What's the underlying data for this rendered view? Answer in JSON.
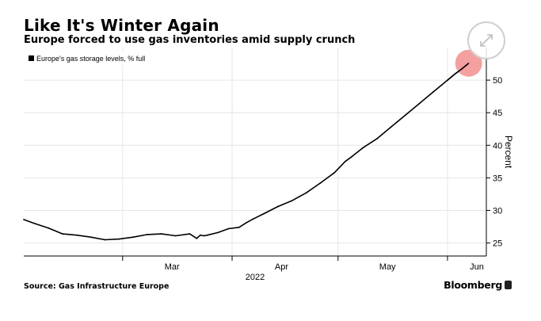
{
  "header": {
    "title": "Like It's Winter Again",
    "subtitle": "Europe forced to use gas inventories amid supply crunch"
  },
  "footer": {
    "source": "Source: Gas Infrastructure Europe",
    "brand": "Bloomberg"
  },
  "controls": {
    "expand_icon": "expand-arrows-icon"
  },
  "highlight": {
    "color": "#f08080",
    "label": "latest-value-marker"
  },
  "chart_data": {
    "type": "line",
    "series": [
      {
        "name": "Europe's gas storage levels, % full",
        "color": "#000000",
        "x": [
          "2022-02-01",
          "2022-02-04",
          "2022-02-08",
          "2022-02-12",
          "2022-02-16",
          "2022-02-20",
          "2022-02-24",
          "2022-02-28",
          "2022-03-04",
          "2022-03-08",
          "2022-03-12",
          "2022-03-16",
          "2022-03-20",
          "2022-03-22",
          "2022-03-23",
          "2022-03-24",
          "2022-03-25",
          "2022-03-28",
          "2022-03-31",
          "2022-04-03",
          "2022-04-05",
          "2022-04-07",
          "2022-04-10",
          "2022-04-14",
          "2022-04-18",
          "2022-04-22",
          "2022-04-26",
          "2022-04-30",
          "2022-05-03",
          "2022-05-05",
          "2022-05-08",
          "2022-05-12",
          "2022-05-16",
          "2022-05-20",
          "2022-05-24",
          "2022-05-28",
          "2022-06-01",
          "2022-06-03",
          "2022-06-05",
          "2022-06-07"
        ],
        "values": [
          28.6,
          28.0,
          27.3,
          26.4,
          26.2,
          25.9,
          25.5,
          25.6,
          25.9,
          26.3,
          26.4,
          26.1,
          26.4,
          25.7,
          26.2,
          26.1,
          26.2,
          26.6,
          27.2,
          27.4,
          28.1,
          28.7,
          29.5,
          30.6,
          31.5,
          32.7,
          34.2,
          35.8,
          37.5,
          38.3,
          39.6,
          41.0,
          42.8,
          44.6,
          46.4,
          48.2,
          50.0,
          50.9,
          51.7,
          52.6
        ]
      }
    ],
    "x_ticks": [
      "Mar",
      "Apr",
      "May",
      "Jun"
    ],
    "x_tick_dates": [
      "2022-03-01",
      "2022-04-01",
      "2022-05-01",
      "2022-06-01"
    ],
    "x_year_label": "2022",
    "xlim": [
      "2022-02-01",
      "2022-06-12"
    ],
    "y_ticks": [
      25,
      30,
      35,
      40,
      45,
      50
    ],
    "ylim": [
      23,
      55
    ],
    "ylabel": "Percent",
    "grid": true,
    "legend_position": "top-left"
  }
}
